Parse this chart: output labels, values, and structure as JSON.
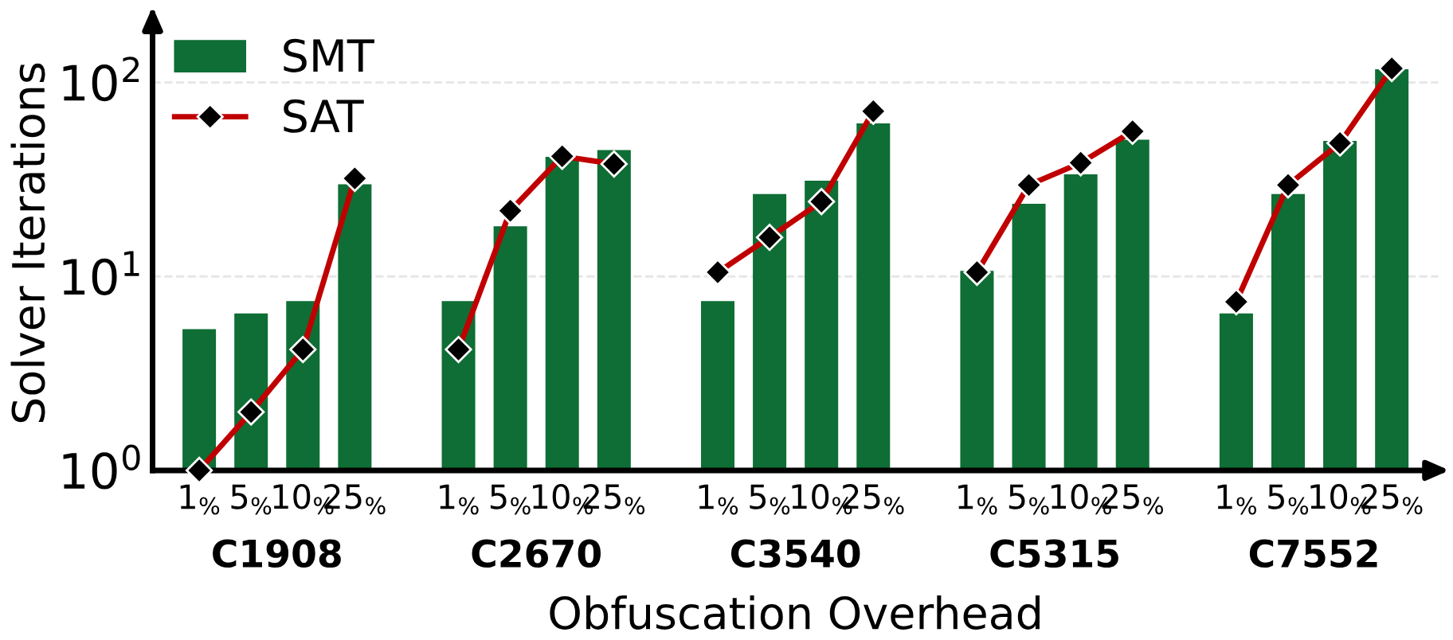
{
  "chart_data": {
    "type": "bar",
    "xlabel": "Obfuscation Overhead",
    "ylabel": "Solver Iterations",
    "categories": [
      "1$_{%}$",
      "5$_{%}$",
      "10$_{%}$",
      "25$_{%}$",
      "1$_{%}$",
      "5$_{%}$",
      "10$_{%}$",
      "25$_{%}$",
      "1$_{%}$",
      "5$_{%}$",
      "10$_{%}$",
      "25$_{%}$",
      "1$_{%}$",
      "5$_{%}$",
      "10$_{%}$",
      "25$_{%}$",
      "1$_{%}$",
      "5$_{%}$",
      "10$_{%}$",
      "25$_{%}$"
    ],
    "annotations": [
      "C1908",
      "C2670",
      "C3540",
      "C5315",
      "C7552"
    ],
    "series": [
      {
        "name": "SMT",
        "color": "#0f6e35",
        "values": [
          5.3,
          6.4,
          7.4,
          29.6,
          7.4,
          18,
          41,
          44.5,
          7.4,
          26.4,
          30.9,
          61,
          10.6,
          23.5,
          33.3,
          50.3,
          6.4,
          26.4,
          49.6,
          116
        ]
      },
      {
        "name": "SAT",
        "type": "line",
        "color": "#c00000",
        "values": [
          1.0,
          2.0,
          4.2,
          32,
          4.2,
          21.8,
          41.6,
          38,
          10.5,
          15.9,
          24.3,
          71,
          10.5,
          29.6,
          38.5,
          56,
          7.4,
          29.6,
          48.7,
          118
        ]
      }
    ],
    "log": "y",
    "ylim": [
      1,
      220
    ],
    "yticks": [
      {
        "value": 1,
        "label": "10$^{0}$"
      },
      {
        "value": 10,
        "label": "10$^{1}$"
      },
      {
        "value": 100,
        "label": "10$^{2}$"
      }
    ],
    "grid": "y",
    "legend": "top left",
    "marker": "diamond",
    "line_style": "solid"
  }
}
